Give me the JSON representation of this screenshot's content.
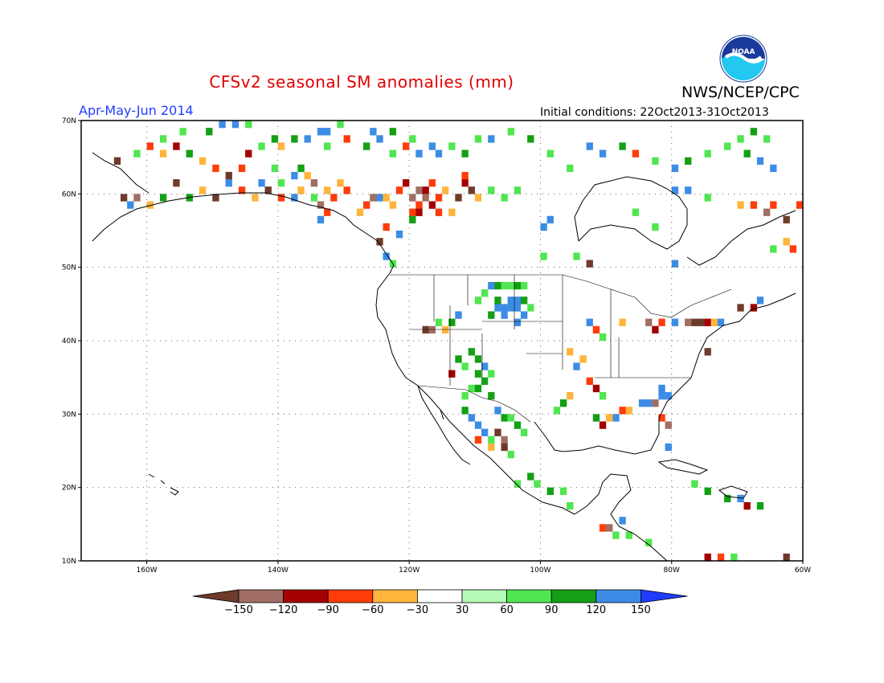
{
  "title": "CFSv2 seasonal SM anomalies (mm)",
  "agency": "NWS/NCEP/CPC",
  "logo_text": "NOAA",
  "season": "Apr-May-Jun 2014",
  "initial_conditions": "Initial conditions: 22Oct2013-31Oct2013",
  "map": {
    "lon_range": [
      -170,
      -60
    ],
    "lat_range": [
      10,
      70
    ],
    "lon_labels": [
      "160W",
      "140W",
      "120W",
      "100W",
      "80W",
      "60W"
    ],
    "lat_labels": [
      "70N",
      "60N",
      "50N",
      "40N",
      "30N",
      "20N",
      "10N"
    ]
  },
  "colorbar": {
    "colors": [
      "#6e3b2b",
      "#a06e64",
      "#a50000",
      "#ff3c0a",
      "#ffb43c",
      "#ffffff",
      "#b4fab4",
      "#50e650",
      "#14a014",
      "#3c8ce6",
      "#1e3cff"
    ],
    "labels": [
      "-150",
      "-120",
      "-90",
      "-60",
      "-30",
      "30",
      "60",
      "90",
      "120",
      "150"
    ]
  },
  "anomaly_cells": [
    {
      "lon": -106,
      "lat": 45,
      "v": 150
    },
    {
      "lon": -105,
      "lat": 45,
      "v": 150
    },
    {
      "lon": -104,
      "lat": 46,
      "v": 150
    },
    {
      "lon": -104,
      "lat": 45,
      "v": 150
    },
    {
      "lon": -103,
      "lat": 44,
      "v": 150
    },
    {
      "lon": -105,
      "lat": 46,
      "v": 120
    },
    {
      "lon": -106,
      "lat": 44,
      "v": 120
    },
    {
      "lon": -107,
      "lat": 45,
      "v": 120
    },
    {
      "lon": -107,
      "lat": 46,
      "v": 90
    },
    {
      "lon": -108,
      "lat": 44,
      "v": 90
    },
    {
      "lon": -103,
      "lat": 46,
      "v": 90
    },
    {
      "lon": -104,
      "lat": 43,
      "v": 120
    },
    {
      "lon": -102,
      "lat": 45,
      "v": 60
    },
    {
      "lon": -109,
      "lat": 47,
      "v": 60
    },
    {
      "lon": -110,
      "lat": 46,
      "v": 60
    },
    {
      "lon": -108,
      "lat": 48,
      "v": 120
    },
    {
      "lon": -107,
      "lat": 48,
      "v": 90
    },
    {
      "lon": -106,
      "lat": 48,
      "v": 60
    },
    {
      "lon": -105,
      "lat": 48,
      "v": 60
    },
    {
      "lon": -104,
      "lat": 48,
      "v": 90
    },
    {
      "lon": -103,
      "lat": 48,
      "v": 60
    },
    {
      "lon": -111,
      "lat": 39,
      "v": 90
    },
    {
      "lon": -110,
      "lat": 38,
      "v": 90
    },
    {
      "lon": -109,
      "lat": 37,
      "v": 120
    },
    {
      "lon": -112,
      "lat": 37,
      "v": 60
    },
    {
      "lon": -113,
      "lat": 38,
      "v": 90
    },
    {
      "lon": -110,
      "lat": 36,
      "v": 90
    },
    {
      "lon": -108,
      "lat": 36,
      "v": 60
    },
    {
      "lon": -109,
      "lat": 35,
      "v": 90
    },
    {
      "lon": -111,
      "lat": 34,
      "v": 60
    },
    {
      "lon": -108,
      "lat": 33,
      "v": 90
    },
    {
      "lon": -107,
      "lat": 31,
      "v": 120
    },
    {
      "lon": -106,
      "lat": 30,
      "v": 90
    },
    {
      "lon": -105,
      "lat": 30,
      "v": 60
    },
    {
      "lon": -104,
      "lat": 29,
      "v": 90
    },
    {
      "lon": -103,
      "lat": 28,
      "v": 60
    },
    {
      "lon": -107,
      "lat": 28,
      "v": -150
    },
    {
      "lon": -106,
      "lat": 27,
      "v": -120
    },
    {
      "lon": -106,
      "lat": 26,
      "v": -150
    },
    {
      "lon": -108,
      "lat": 27,
      "v": 60
    },
    {
      "lon": -109,
      "lat": 28,
      "v": 150
    },
    {
      "lon": -110,
      "lat": 29,
      "v": 120
    },
    {
      "lon": -111,
      "lat": 30,
      "v": 150
    },
    {
      "lon": -112,
      "lat": 31,
      "v": 90
    },
    {
      "lon": -110,
      "lat": 27,
      "v": -60
    },
    {
      "lon": -108,
      "lat": 26,
      "v": -30
    },
    {
      "lon": -105,
      "lat": 25,
      "v": 60
    },
    {
      "lon": -102,
      "lat": 22,
      "v": 90
    },
    {
      "lon": -101,
      "lat": 21,
      "v": 60
    },
    {
      "lon": -99,
      "lat": 20,
      "v": 90
    },
    {
      "lon": -104,
      "lat": 21,
      "v": 60
    },
    {
      "lon": -97,
      "lat": 20,
      "v": 60
    },
    {
      "lon": -96,
      "lat": 18,
      "v": 60
    },
    {
      "lon": -119,
      "lat": 61,
      "v": -120
    },
    {
      "lon": -118,
      "lat": 61,
      "v": -90
    },
    {
      "lon": -120,
      "lat": 60,
      "v": -120
    },
    {
      "lon": -118,
      "lat": 60,
      "v": -120
    },
    {
      "lon": -119,
      "lat": 59,
      "v": -60
    },
    {
      "lon": -117,
      "lat": 59,
      "v": -90
    },
    {
      "lon": -116,
      "lat": 60,
      "v": -60
    },
    {
      "lon": -121,
      "lat": 62,
      "v": -90
    },
    {
      "lon": -122,
      "lat": 61,
      "v": -60
    },
    {
      "lon": -117,
      "lat": 62,
      "v": -60
    },
    {
      "lon": -115,
      "lat": 61,
      "v": -30
    },
    {
      "lon": -116,
      "lat": 58,
      "v": -60
    },
    {
      "lon": -119,
      "lat": 58,
      "v": -90
    },
    {
      "lon": -120,
      "lat": 58,
      "v": -60
    },
    {
      "lon": -123,
      "lat": 59,
      "v": -30
    },
    {
      "lon": -125,
      "lat": 60,
      "v": 150
    },
    {
      "lon": -126,
      "lat": 60,
      "v": -120
    },
    {
      "lon": -127,
      "lat": 59,
      "v": -60
    },
    {
      "lon": -124,
      "lat": 60,
      "v": -30
    },
    {
      "lon": -128,
      "lat": 58,
      "v": -30
    },
    {
      "lon": -131,
      "lat": 62,
      "v": -30
    },
    {
      "lon": -130,
      "lat": 61,
      "v": -60
    },
    {
      "lon": -132,
      "lat": 60,
      "v": -60
    },
    {
      "lon": -133,
      "lat": 61,
      "v": -30
    },
    {
      "lon": -135,
      "lat": 60,
      "v": 60
    },
    {
      "lon": -137,
      "lat": 61,
      "v": -30
    },
    {
      "lon": -138,
      "lat": 60,
      "v": 150
    },
    {
      "lon": -140,
      "lat": 62,
      "v": 60
    },
    {
      "lon": -136,
      "lat": 63,
      "v": -30
    },
    {
      "lon": -138,
      "lat": 63,
      "v": 120
    },
    {
      "lon": -137,
      "lat": 64,
      "v": 90
    },
    {
      "lon": -141,
      "lat": 64,
      "v": 60
    },
    {
      "lon": -135,
      "lat": 62,
      "v": -120
    },
    {
      "lon": -134,
      "lat": 59,
      "v": -120
    },
    {
      "lon": -133,
      "lat": 58,
      "v": -60
    },
    {
      "lon": -134,
      "lat": 57,
      "v": 150
    },
    {
      "lon": -112,
      "lat": 62,
      "v": -90
    },
    {
      "lon": -111,
      "lat": 61,
      "v": -150
    },
    {
      "lon": -113,
      "lat": 60,
      "v": -150
    },
    {
      "lon": -112,
      "lat": 63,
      "v": -60
    },
    {
      "lon": -110,
      "lat": 60,
      "v": -30
    },
    {
      "lon": -108,
      "lat": 61,
      "v": 60
    },
    {
      "lon": -106,
      "lat": 60,
      "v": 60
    },
    {
      "lon": -104,
      "lat": 61,
      "v": 60
    },
    {
      "lon": -114,
      "lat": 58,
      "v": -30
    },
    {
      "lon": -164,
      "lat": 60,
      "v": -150
    },
    {
      "lon": -163,
      "lat": 59,
      "v": 150
    },
    {
      "lon": -162,
      "lat": 60,
      "v": -120
    },
    {
      "lon": -160,
      "lat": 59,
      "v": -30
    },
    {
      "lon": -158,
      "lat": 60,
      "v": 90
    },
    {
      "lon": -156,
      "lat": 62,
      "v": -150
    },
    {
      "lon": -154,
      "lat": 60,
      "v": 90
    },
    {
      "lon": -152,
      "lat": 61,
      "v": -30
    },
    {
      "lon": -150,
      "lat": 60,
      "v": -150
    },
    {
      "lon": -148,
      "lat": 62,
      "v": 150
    },
    {
      "lon": -146,
      "lat": 61,
      "v": -60
    },
    {
      "lon": -144,
      "lat": 60,
      "v": -30
    },
    {
      "lon": -143,
      "lat": 62,
      "v": 150
    },
    {
      "lon": -142,
      "lat": 61,
      "v": -150
    },
    {
      "lon": -140,
      "lat": 60,
      "v": -60
    },
    {
      "lon": -165,
      "lat": 65,
      "v": -150
    },
    {
      "lon": -162,
      "lat": 66,
      "v": 60
    },
    {
      "lon": -160,
      "lat": 67,
      "v": -60
    },
    {
      "lon": -158,
      "lat": 66,
      "v": -30
    },
    {
      "lon": -156,
      "lat": 67,
      "v": -90
    },
    {
      "lon": -154,
      "lat": 66,
      "v": 90
    },
    {
      "lon": -152,
      "lat": 65,
      "v": -30
    },
    {
      "lon": -150,
      "lat": 64,
      "v": -60
    },
    {
      "lon": -148,
      "lat": 63,
      "v": -150
    },
    {
      "lon": -146,
      "lat": 64,
      "v": -60
    },
    {
      "lon": -145,
      "lat": 66,
      "v": -90
    },
    {
      "lon": -143,
      "lat": 67,
      "v": 60
    },
    {
      "lon": -141,
      "lat": 68,
      "v": 90
    },
    {
      "lon": -140,
      "lat": 67,
      "v": -30
    },
    {
      "lon": -138,
      "lat": 68,
      "v": 90
    },
    {
      "lon": -136,
      "lat": 68,
      "v": 150
    },
    {
      "lon": -133,
      "lat": 67,
      "v": 60
    },
    {
      "lon": -130,
      "lat": 68,
      "v": -60
    },
    {
      "lon": -127,
      "lat": 67,
      "v": 90
    },
    {
      "lon": -125,
      "lat": 68,
      "v": 120
    },
    {
      "lon": -123,
      "lat": 66,
      "v": 60
    },
    {
      "lon": -121,
      "lat": 67,
      "v": -60
    },
    {
      "lon": -119,
      "lat": 66,
      "v": 120
    },
    {
      "lon": -117,
      "lat": 67,
      "v": 150
    },
    {
      "lon": -116,
      "lat": 66,
      "v": 150
    },
    {
      "lon": -114,
      "lat": 67,
      "v": 60
    },
    {
      "lon": -112,
      "lat": 66,
      "v": 90
    },
    {
      "lon": -110,
      "lat": 68,
      "v": 60
    },
    {
      "lon": -108,
      "lat": 68,
      "v": 120
    },
    {
      "lon": -105,
      "lat": 69,
      "v": 60
    },
    {
      "lon": -102,
      "lat": 68,
      "v": 90
    },
    {
      "lon": -99,
      "lat": 66,
      "v": 60
    },
    {
      "lon": -96,
      "lat": 64,
      "v": 60
    },
    {
      "lon": -93,
      "lat": 67,
      "v": 120
    },
    {
      "lon": -91,
      "lat": 66,
      "v": 120
    },
    {
      "lon": -88,
      "lat": 67,
      "v": 90
    },
    {
      "lon": -86,
      "lat": 66,
      "v": -60
    },
    {
      "lon": -83,
      "lat": 65,
      "v": 60
    },
    {
      "lon": -80,
      "lat": 64,
      "v": 120
    },
    {
      "lon": -78,
      "lat": 65,
      "v": 90
    },
    {
      "lon": -75,
      "lat": 66,
      "v": 60
    },
    {
      "lon": -72,
      "lat": 67,
      "v": 60
    },
    {
      "lon": -69,
      "lat": 66,
      "v": 90
    },
    {
      "lon": -67,
      "lat": 65,
      "v": 150
    },
    {
      "lon": -65,
      "lat": 64,
      "v": 150
    },
    {
      "lon": -66,
      "lat": 68,
      "v": 60
    },
    {
      "lon": -68,
      "lat": 69,
      "v": 90
    },
    {
      "lon": -70,
      "lat": 68,
      "v": 60
    },
    {
      "lon": -126,
      "lat": 69,
      "v": 120
    },
    {
      "lon": -123,
      "lat": 69,
      "v": 90
    },
    {
      "lon": -120,
      "lat": 68,
      "v": 60
    },
    {
      "lon": -134,
      "lat": 69,
      "v": 120
    },
    {
      "lon": -133,
      "lat": 69,
      "v": 150
    },
    {
      "lon": -131,
      "lat": 70,
      "v": 60
    },
    {
      "lon": -149,
      "lat": 70,
      "v": 120
    },
    {
      "lon": -147,
      "lat": 70,
      "v": 120
    },
    {
      "lon": -145,
      "lat": 70,
      "v": 60
    },
    {
      "lon": -151,
      "lat": 69,
      "v": 90
    },
    {
      "lon": -155,
      "lat": 69,
      "v": 60
    },
    {
      "lon": -158,
      "lat": 68,
      "v": 60
    },
    {
      "lon": -80,
      "lat": 61,
      "v": 120
    },
    {
      "lon": -78,
      "lat": 61,
      "v": 120
    },
    {
      "lon": -75,
      "lat": 60,
      "v": 60
    },
    {
      "lon": -70,
      "lat": 59,
      "v": -30
    },
    {
      "lon": -68,
      "lat": 59,
      "v": -60
    },
    {
      "lon": -66,
      "lat": 58,
      "v": -120
    },
    {
      "lon": -65,
      "lat": 59,
      "v": -60
    },
    {
      "lon": -63,
      "lat": 57,
      "v": -150
    },
    {
      "lon": -61,
      "lat": 59,
      "v": -60
    },
    {
      "lon": -65,
      "lat": 53,
      "v": 60
    },
    {
      "lon": -63,
      "lat": 54,
      "v": -30
    },
    {
      "lon": -62,
      "lat": 53,
      "v": -60
    },
    {
      "lon": -80,
      "lat": 51,
      "v": 150
    },
    {
      "lon": -83,
      "lat": 56,
      "v": 60
    },
    {
      "lon": -86,
      "lat": 58,
      "v": 60
    },
    {
      "lon": -93,
      "lat": 51,
      "v": -150
    },
    {
      "lon": -95,
      "lat": 52,
      "v": 60
    },
    {
      "lon": -99,
      "lat": 57,
      "v": 150
    },
    {
      "lon": -100,
      "lat": 56,
      "v": 150
    },
    {
      "lon": -100,
      "lat": 52,
      "v": 60
    },
    {
      "lon": -124,
      "lat": 52,
      "v": 150
    },
    {
      "lon": -123,
      "lat": 51,
      "v": 60
    },
    {
      "lon": -125,
      "lat": 54,
      "v": -150
    },
    {
      "lon": -122,
      "lat": 55,
      "v": 150
    },
    {
      "lon": -124,
      "lat": 56,
      "v": -60
    },
    {
      "lon": -120,
      "lat": 57,
      "v": 90
    },
    {
      "lon": -118,
      "lat": 42,
      "v": -150
    },
    {
      "lon": -117,
      "lat": 42,
      "v": -120
    },
    {
      "lon": -116,
      "lat": 43,
      "v": 60
    },
    {
      "lon": -115,
      "lat": 42,
      "v": -30
    },
    {
      "lon": -114,
      "lat": 43,
      "v": 90
    },
    {
      "lon": -113,
      "lat": 44,
      "v": 120
    },
    {
      "lon": -114,
      "lat": 36,
      "v": -90
    },
    {
      "lon": -112,
      "lat": 33,
      "v": 60
    },
    {
      "lon": -110,
      "lat": 34,
      "v": 90
    },
    {
      "lon": -96,
      "lat": 39,
      "v": -30
    },
    {
      "lon": -95,
      "lat": 37,
      "v": 150
    },
    {
      "lon": -94,
      "lat": 38,
      "v": -30
    },
    {
      "lon": -93,
      "lat": 35,
      "v": -60
    },
    {
      "lon": -92,
      "lat": 34,
      "v": -90
    },
    {
      "lon": -91,
      "lat": 33,
      "v": 60
    },
    {
      "lon": -92,
      "lat": 42,
      "v": -60
    },
    {
      "lon": -93,
      "lat": 43,
      "v": 150
    },
    {
      "lon": -91,
      "lat": 41,
      "v": 60
    },
    {
      "lon": -88,
      "lat": 43,
      "v": -30
    },
    {
      "lon": -84,
      "lat": 43,
      "v": -120
    },
    {
      "lon": -83,
      "lat": 42,
      "v": -90
    },
    {
      "lon": -82,
      "lat": 43,
      "v": -60
    },
    {
      "lon": -80,
      "lat": 43,
      "v": 150
    },
    {
      "lon": -78,
      "lat": 43,
      "v": -120
    },
    {
      "lon": -77,
      "lat": 43,
      "v": -150
    },
    {
      "lon": -76,
      "lat": 43,
      "v": -150
    },
    {
      "lon": -75,
      "lat": 43,
      "v": -90
    },
    {
      "lon": -74,
      "lat": 43,
      "v": -30
    },
    {
      "lon": -73,
      "lat": 43,
      "v": 150
    },
    {
      "lon": -70,
      "lat": 45,
      "v": -150
    },
    {
      "lon": -67,
      "lat": 46,
      "v": 150
    },
    {
      "lon": -68,
      "lat": 45,
      "v": -90
    },
    {
      "lon": -75,
      "lat": 39,
      "v": -150
    },
    {
      "lon": -82,
      "lat": 34,
      "v": 150
    },
    {
      "lon": -81,
      "lat": 33,
      "v": 120
    },
    {
      "lon": -82,
      "lat": 33,
      "v": 150
    },
    {
      "lon": -83,
      "lat": 32,
      "v": -120
    },
    {
      "lon": -84,
      "lat": 32,
      "v": 120
    },
    {
      "lon": -85,
      "lat": 32,
      "v": 150
    },
    {
      "lon": -87,
      "lat": 31,
      "v": -30
    },
    {
      "lon": -88,
      "lat": 31,
      "v": -60
    },
    {
      "lon": -89,
      "lat": 30,
      "v": 150
    },
    {
      "lon": -90,
      "lat": 30,
      "v": -30
    },
    {
      "lon": -91,
      "lat": 29,
      "v": -90
    },
    {
      "lon": -92,
      "lat": 30,
      "v": 90
    },
    {
      "lon": -82,
      "lat": 30,
      "v": -60
    },
    {
      "lon": -81,
      "lat": 29,
      "v": -120
    },
    {
      "lon": -81,
      "lat": 26,
      "v": 120
    },
    {
      "lon": -96,
      "lat": 33,
      "v": -30
    },
    {
      "lon": -97,
      "lat": 32,
      "v": 90
    },
    {
      "lon": -98,
      "lat": 31,
      "v": 60
    },
    {
      "lon": -77,
      "lat": 21,
      "v": 60
    },
    {
      "lon": -75,
      "lat": 20,
      "v": 90
    },
    {
      "lon": -72,
      "lat": 19,
      "v": 90
    },
    {
      "lon": -70,
      "lat": 19,
      "v": 150
    },
    {
      "lon": -69,
      "lat": 18,
      "v": -90
    },
    {
      "lon": -67,
      "lat": 18,
      "v": 90
    },
    {
      "lon": -91,
      "lat": 15,
      "v": -60
    },
    {
      "lon": -90,
      "lat": 15,
      "v": -120
    },
    {
      "lon": -89,
      "lat": 14,
      "v": 60
    },
    {
      "lon": -88,
      "lat": 16,
      "v": 120
    },
    {
      "lon": -87,
      "lat": 14,
      "v": 60
    },
    {
      "lon": -84,
      "lat": 13,
      "v": 60
    },
    {
      "lon": -75,
      "lat": 11,
      "v": -90
    },
    {
      "lon": -73,
      "lat": 11,
      "v": -60
    },
    {
      "lon": -71,
      "lat": 11,
      "v": 60
    },
    {
      "lon": -63,
      "lat": 11,
      "v": -150
    },
    {
      "lon": -64,
      "lat": 10,
      "v": -60
    }
  ]
}
